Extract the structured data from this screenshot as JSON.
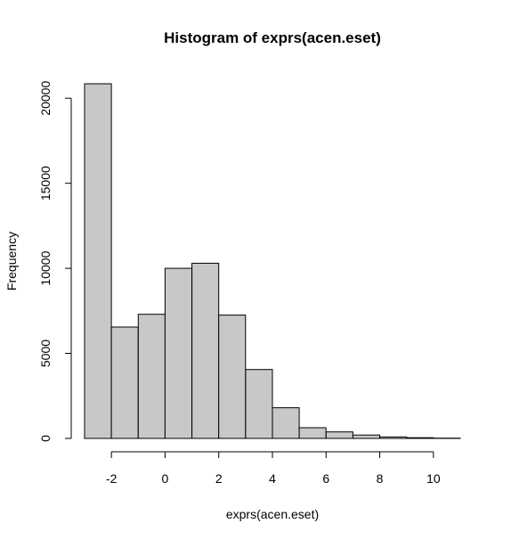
{
  "chart_data": {
    "type": "bar",
    "title": "Histogram of exprs(acen.eset)",
    "xlabel": "exprs(acen.eset)",
    "ylabel": "Frequency",
    "bins": [
      {
        "start": -3,
        "end": -2,
        "count": 20850
      },
      {
        "start": -2,
        "end": -1,
        "count": 6550
      },
      {
        "start": -1,
        "end": 0,
        "count": 7300
      },
      {
        "start": 0,
        "end": 1,
        "count": 10000
      },
      {
        "start": 1,
        "end": 2,
        "count": 10300
      },
      {
        "start": 2,
        "end": 3,
        "count": 7250
      },
      {
        "start": 3,
        "end": 4,
        "count": 4050
      },
      {
        "start": 4,
        "end": 5,
        "count": 1800
      },
      {
        "start": 5,
        "end": 6,
        "count": 630
      },
      {
        "start": 6,
        "end": 7,
        "count": 380
      },
      {
        "start": 7,
        "end": 8,
        "count": 200
      },
      {
        "start": 8,
        "end": 9,
        "count": 90
      },
      {
        "start": 9,
        "end": 10,
        "count": 40
      },
      {
        "start": 10,
        "end": 11,
        "count": 15
      }
    ],
    "xlim": [
      -3,
      11
    ],
    "ylim": [
      0,
      20850
    ],
    "x_ticks": [
      -2,
      0,
      2,
      4,
      6,
      8,
      10
    ],
    "x_tick_labels": [
      "-2",
      "0",
      "2",
      "4",
      "6",
      "8",
      "10"
    ],
    "y_ticks": [
      0,
      5000,
      10000,
      15000,
      20000
    ],
    "y_tick_labels": [
      "0",
      "5000",
      "10000",
      "15000",
      "20000"
    ],
    "grid": false,
    "bar_color": "#c8c8c8",
    "edge_color": "#000000"
  }
}
